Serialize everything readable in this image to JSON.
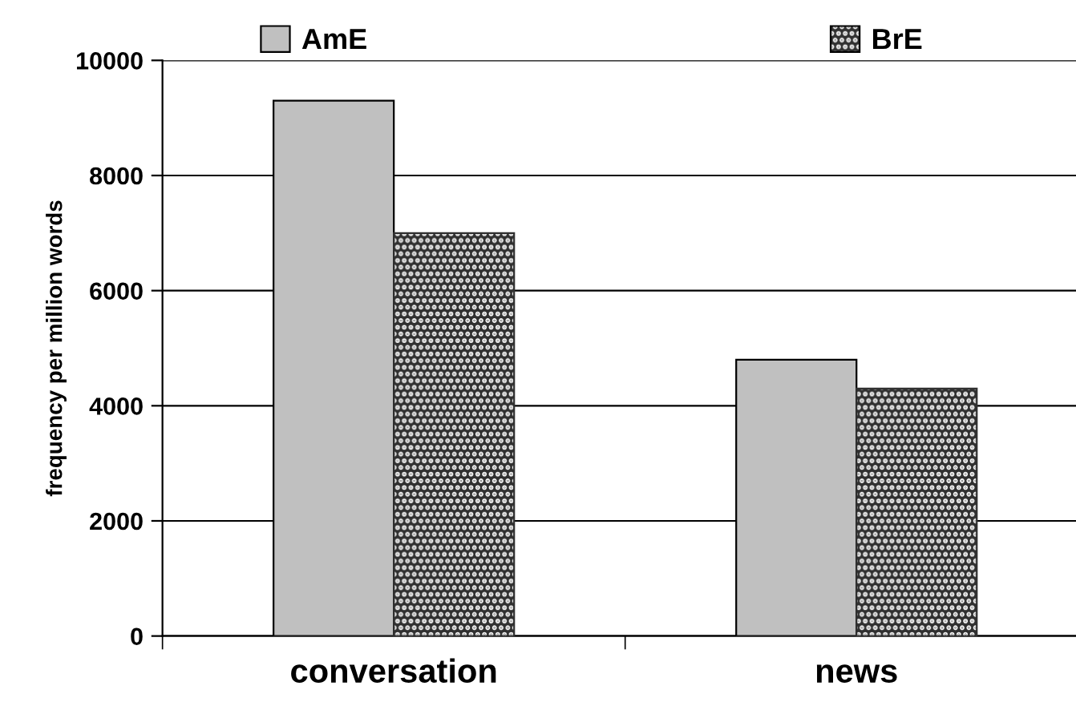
{
  "chart_data": {
    "type": "bar",
    "categories": [
      "conversation",
      "news"
    ],
    "series": [
      {
        "name": "AmE",
        "color": "#c0c0c0",
        "values": [
          9300,
          4800
        ]
      },
      {
        "name": "BrE",
        "color": "#303030",
        "values": [
          7000,
          4300
        ]
      }
    ],
    "ylabel": "frequency per million words",
    "ylim": [
      0,
      10000
    ],
    "yticks": [
      0,
      2000,
      4000,
      6000,
      8000,
      10000
    ],
    "grid": "y",
    "legend": "top"
  }
}
